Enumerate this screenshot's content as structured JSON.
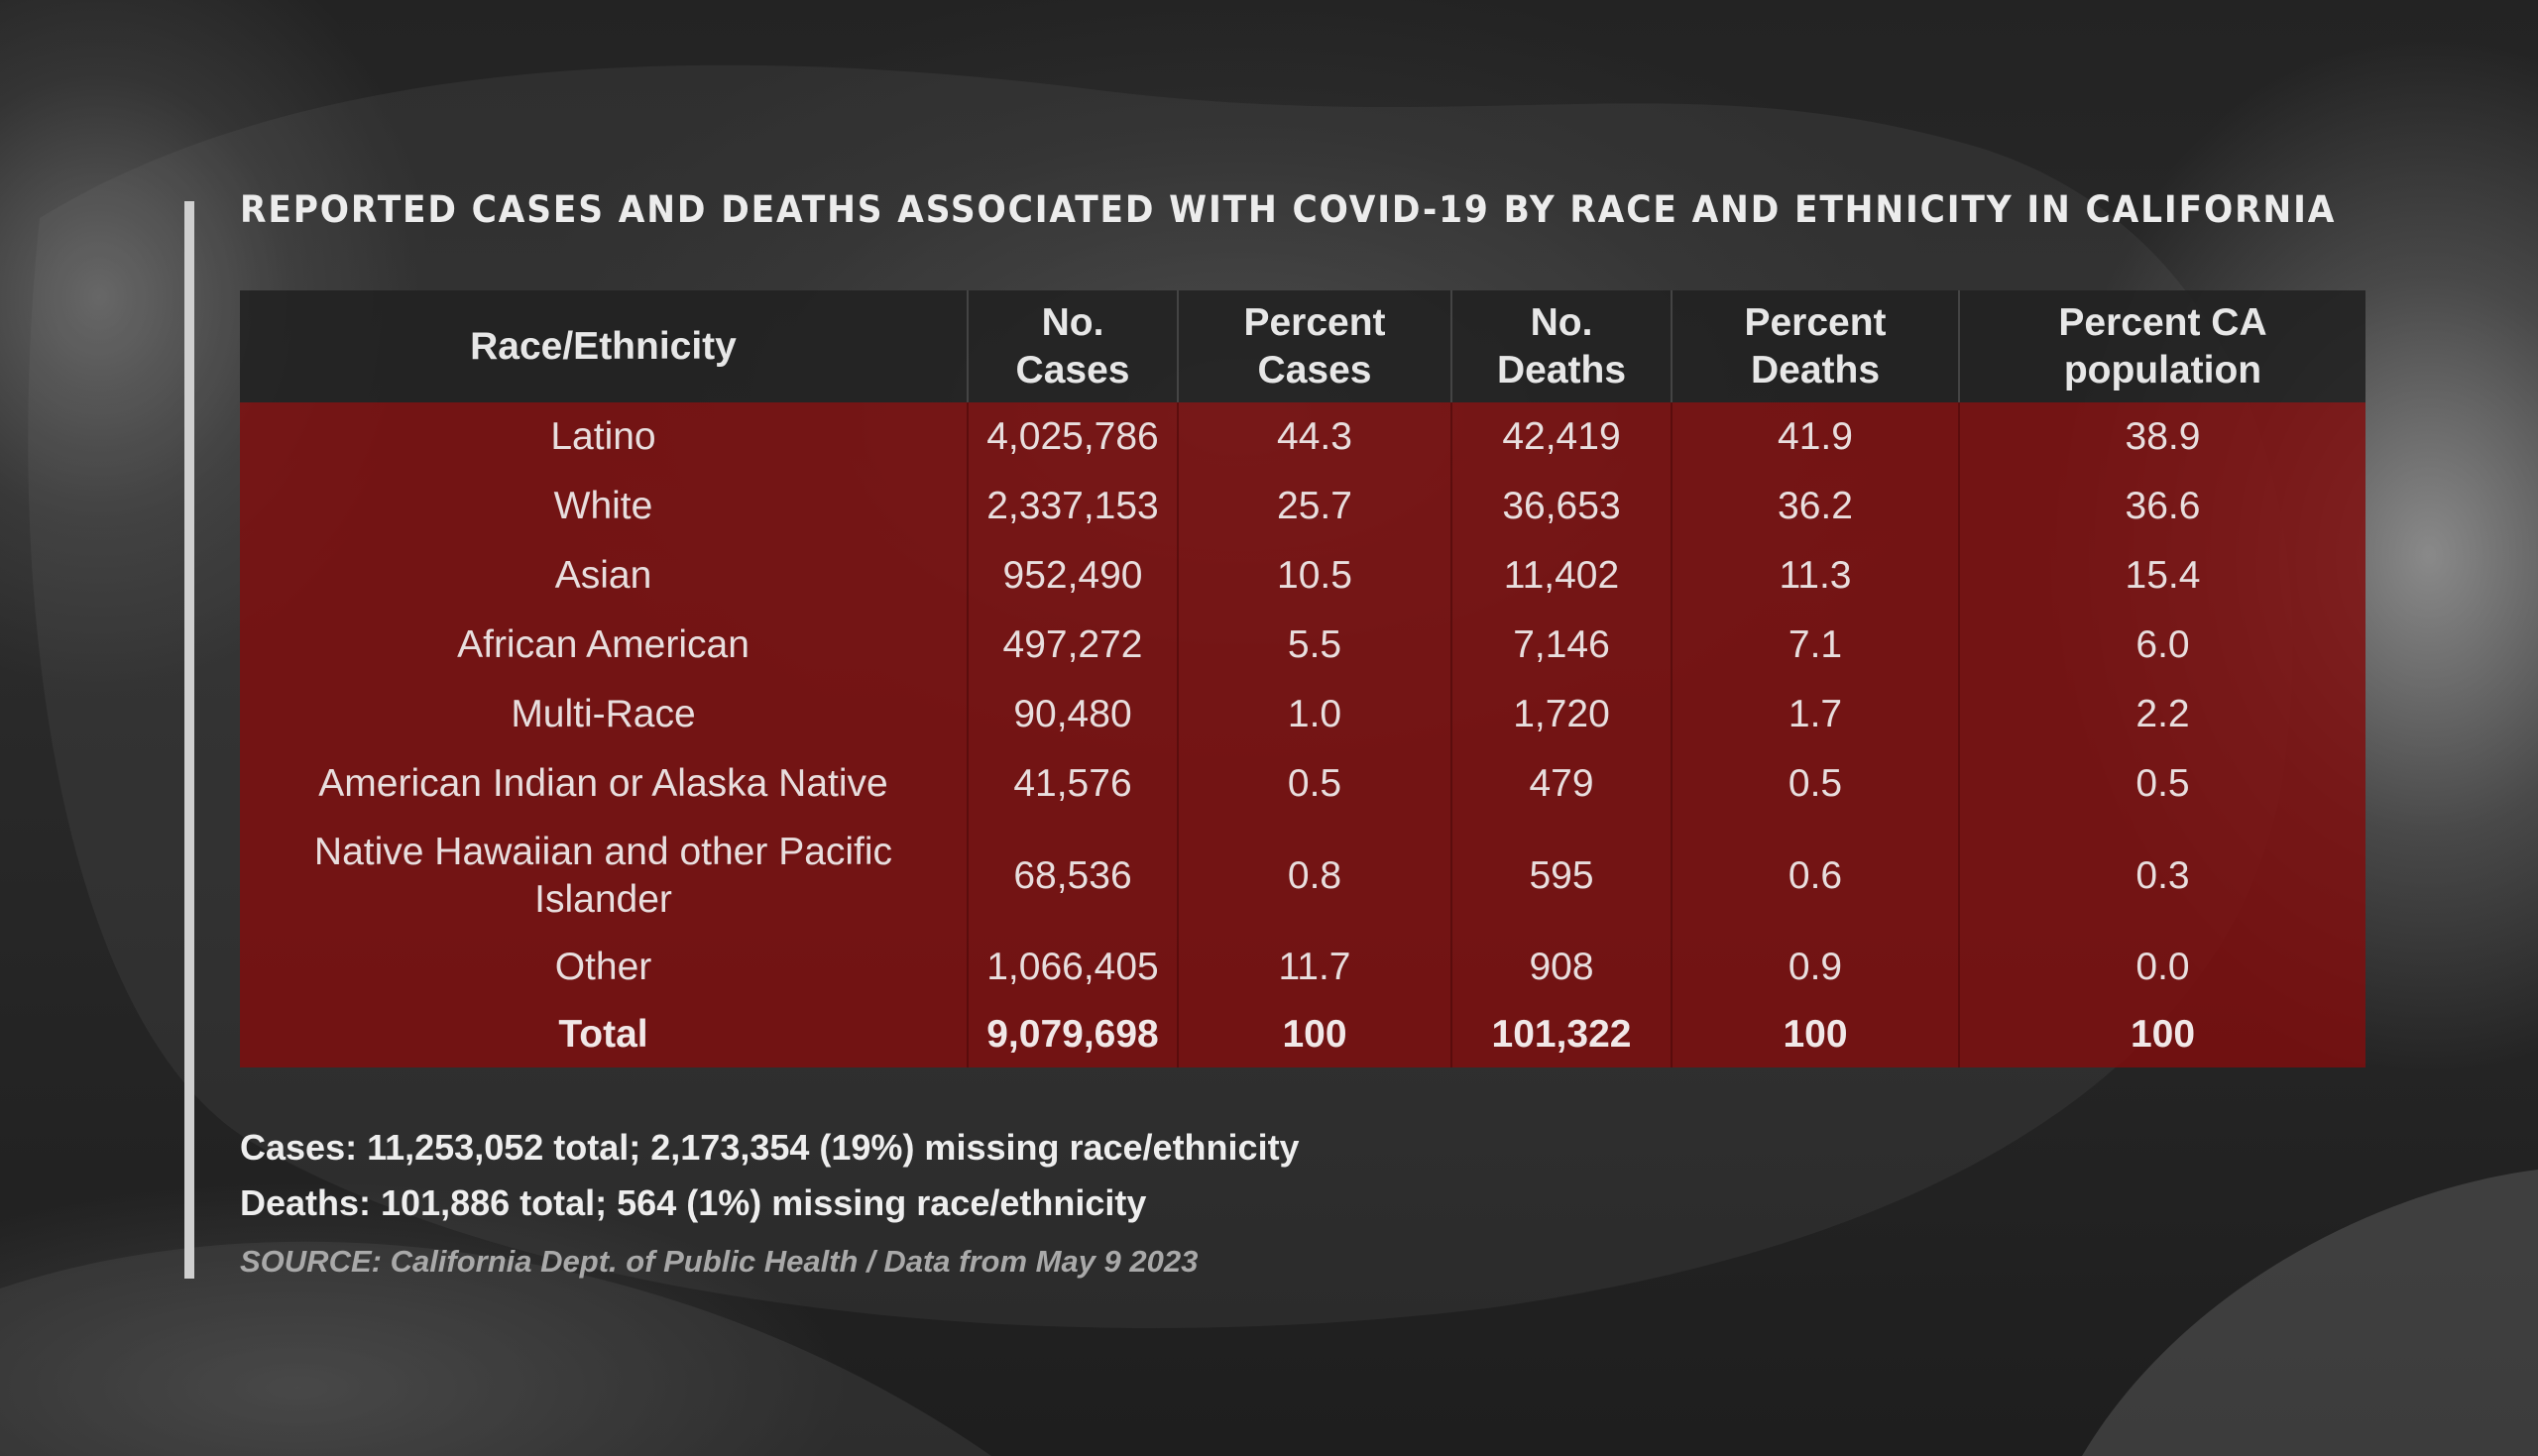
{
  "title": "REPORTED CASES AND DEATHS ASSOCIATED WITH COVID-19 BY RACE AND ETHNICITY IN CALIFORNIA",
  "chart_data": {
    "type": "table",
    "title": "REPORTED CASES AND DEATHS ASSOCIATED WITH COVID-19 BY RACE AND ETHNICITY IN CALIFORNIA",
    "columns": [
      {
        "line1": "Race/Ethnicity",
        "line2": ""
      },
      {
        "line1": "No.",
        "line2": "Cases"
      },
      {
        "line1": "Percent",
        "line2": "Cases"
      },
      {
        "line1": "No.",
        "line2": "Deaths"
      },
      {
        "line1": "Percent",
        "line2": "Deaths"
      },
      {
        "line1": "Percent CA",
        "line2": "population"
      }
    ],
    "rows": [
      {
        "group": "Latino",
        "cases": "4,025,786",
        "pct_cases": "44.3",
        "deaths": "42,419",
        "pct_deaths": "41.9",
        "pct_pop": "38.9"
      },
      {
        "group": "White",
        "cases": "2,337,153",
        "pct_cases": "25.7",
        "deaths": "36,653",
        "pct_deaths": "36.2",
        "pct_pop": "36.6"
      },
      {
        "group": "Asian",
        "cases": "952,490",
        "pct_cases": "10.5",
        "deaths": "11,402",
        "pct_deaths": "11.3",
        "pct_pop": "15.4"
      },
      {
        "group": "African American",
        "cases": "497,272",
        "pct_cases": "5.5",
        "deaths": "7,146",
        "pct_deaths": "7.1",
        "pct_pop": "6.0"
      },
      {
        "group": "Multi-Race",
        "cases": "90,480",
        "pct_cases": "1.0",
        "deaths": "1,720",
        "pct_deaths": "1.7",
        "pct_pop": "2.2"
      },
      {
        "group": "American Indian or Alaska Native",
        "cases": "41,576",
        "pct_cases": "0.5",
        "deaths": "479",
        "pct_deaths": "0.5",
        "pct_pop": "0.5"
      },
      {
        "group_line1": "Native Hawaiian and other Pacific",
        "group_line2": "Islander",
        "cases": "68,536",
        "pct_cases": "0.8",
        "deaths": "595",
        "pct_deaths": "0.6",
        "pct_pop": "0.3"
      },
      {
        "group": "Other",
        "cases": "1,066,405",
        "pct_cases": "11.7",
        "deaths": "908",
        "pct_deaths": "0.9",
        "pct_pop": "0.0"
      },
      {
        "group": "Total",
        "cases": "9,079,698",
        "pct_cases": "100",
        "deaths": "101,322",
        "pct_deaths": "100",
        "pct_pop": "100"
      }
    ]
  },
  "notes": {
    "cases": "Cases: 11,253,052 total; 2,173,354 (19%) missing race/ethnicity",
    "deaths": "Deaths: 101,886 total; 564 (1%) missing race/ethnicity"
  },
  "source": "SOURCE: California Dept. of Public Health / Data from May 9 2023",
  "colors": {
    "header_bg": "#212121",
    "row_bg": "#800e0e",
    "accent_bar": "#cfcfcf"
  }
}
